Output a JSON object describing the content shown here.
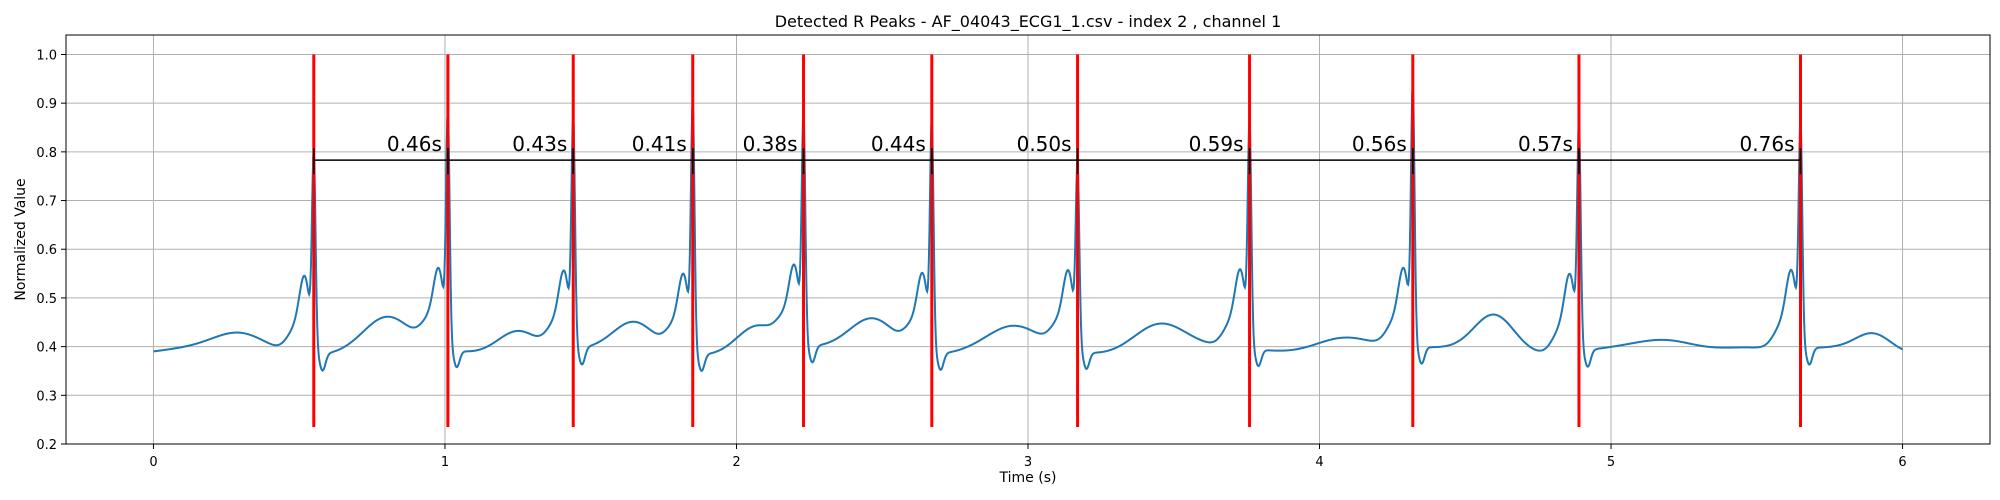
{
  "chart_data": {
    "type": "line",
    "title": "Detected R Peaks - AF_04043_ECG1_1.csv - index 2 , channel 1",
    "xlabel": "Time (s)",
    "ylabel": "Normalized Value",
    "xlim": [
      -0.3,
      6.3
    ],
    "ylim": [
      0.2,
      1.04
    ],
    "xticks": [
      0,
      1,
      2,
      3,
      4,
      5,
      6
    ],
    "yticks": [
      0.2,
      0.3,
      0.4,
      0.5,
      0.6,
      0.7,
      0.8,
      0.9,
      1.0
    ],
    "ytick_labels": [
      "0.2",
      "0.3",
      "0.4",
      "0.5",
      "0.6",
      "0.7",
      "0.8",
      "0.9",
      "1.0"
    ],
    "grid": true,
    "colors": {
      "signal": "#1f77b4",
      "peaks": "#ff0000",
      "intervals": "#000000"
    },
    "peak_line_range": [
      0.235,
      1.0
    ],
    "interval_line_y": 0.783,
    "r_peaks": [
      0.55,
      1.01,
      1.44,
      1.85,
      2.23,
      2.67,
      3.17,
      3.76,
      4.32,
      4.89,
      5.65
    ],
    "peak_heights": [
      0.77,
      0.84,
      0.83,
      0.87,
      0.83,
      0.83,
      0.74,
      0.82,
      0.89,
      0.82,
      0.82
    ],
    "rr_labels": [
      "0.46s",
      "0.43s",
      "0.41s",
      "0.38s",
      "0.44s",
      "0.50s",
      "0.59s",
      "0.56s",
      "0.57s",
      "0.76s"
    ],
    "baseline_waves": [
      {
        "t": 0.3,
        "a": 0.035,
        "w": 0.09
      },
      {
        "t": 0.8,
        "a": 0.065,
        "w": 0.08
      },
      {
        "t": 1.25,
        "a": 0.05,
        "w": 0.07
      },
      {
        "t": 1.65,
        "a": 0.055,
        "w": 0.07
      },
      {
        "t": 2.07,
        "a": 0.055,
        "w": 0.07
      },
      {
        "t": 2.47,
        "a": 0.07,
        "w": 0.08
      },
      {
        "t": 2.95,
        "a": 0.045,
        "w": 0.09
      },
      {
        "t": 3.45,
        "a": 0.06,
        "w": 0.09
      },
      {
        "t": 4.08,
        "a": 0.035,
        "w": 0.1
      },
      {
        "t": 4.6,
        "a": 0.08,
        "w": 0.07
      },
      {
        "t": 5.2,
        "a": 0.02,
        "w": 0.1
      },
      {
        "t": 5.45,
        "a": 0.015,
        "w": 0.1
      },
      {
        "t": 5.9,
        "a": 0.035,
        "w": 0.06
      }
    ]
  }
}
